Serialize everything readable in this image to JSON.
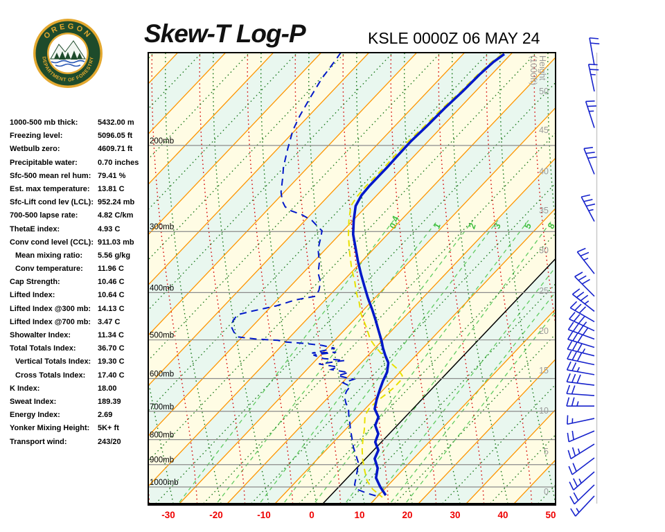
{
  "header": {
    "title": "Skew-T Log-P",
    "station": "KSLE 0000Z 06 MAY 24"
  },
  "logo": {
    "arc_top": "OREGON",
    "arc_bottom": "DEPARTMENT OF FORESTRY"
  },
  "indices": {
    "rows": [
      {
        "label": "1000-500 mb thick:",
        "value": "5432.00 m"
      },
      {
        "label": "Freezing level:",
        "value": "5096.05 ft"
      },
      {
        "label": "Wetbulb zero:",
        "value": "4609.71 ft"
      },
      {
        "label": "Precipitable water:",
        "value": "0.70 inches"
      },
      {
        "label": "Sfc-500 mean rel hum:",
        "value": "79.41 %"
      },
      {
        "label": "Est. max temperature:",
        "value": "13.81 C"
      },
      {
        "label": "Sfc-Lift cond lev (LCL):",
        "value": "952.24 mb"
      },
      {
        "label": "700-500 lapse rate:",
        "value": "4.82 C/km"
      },
      {
        "label": "ThetaE index:",
        "value": "4.93 C"
      },
      {
        "label": "Conv cond level (CCL):",
        "value": "911.03 mb"
      },
      {
        "label": "Mean mixing ratio:",
        "value": "5.56 g/kg",
        "indent": true
      },
      {
        "label": "Conv temperature:",
        "value": "11.96 C",
        "indent": true
      },
      {
        "label": "Cap Strength:",
        "value": "10.46 C"
      },
      {
        "label": "Lifted Index:",
        "value": "10.64 C"
      },
      {
        "label": "Lifted Index @300 mb:",
        "value": "14.13 C"
      },
      {
        "label": "Lifted Index @700 mb:",
        "value": "3.47 C"
      },
      {
        "label": "Showalter Index:",
        "value": "11.34 C"
      },
      {
        "label": "Total Totals Index:",
        "value": "36.70 C"
      },
      {
        "label": "Vertical Totals Index:",
        "value": "19.30 C",
        "indent": true
      },
      {
        "label": "Cross Totals Index:",
        "value": "17.40 C",
        "indent": true
      },
      {
        "label": "K Index:",
        "value": "18.00"
      },
      {
        "label": "Sweat Index:",
        "value": "189.39"
      },
      {
        "label": "Energy Index:",
        "value": "2.69"
      },
      {
        "label": "Yonker Mixing Height:",
        "value": "5K+ ft"
      },
      {
        "label": "Transport wind:",
        "value": "243/20"
      }
    ]
  },
  "chart_data": {
    "type": "skewt",
    "title": "Skew-T Log-P",
    "xlabel": "Temperature (C)",
    "temp_ticks_c": [
      -30,
      -20,
      -10,
      0,
      10,
      20,
      30,
      40,
      50
    ],
    "pressure_levels_mb": [
      200,
      300,
      400,
      500,
      600,
      700,
      800,
      900,
      1000
    ],
    "height_axis": {
      "title_line1": "Height",
      "title_line2": "(1000ft)",
      "labels": [
        {
          "kft": "0",
          "p": 1023
        },
        {
          "kft": "5",
          "p": 847
        },
        {
          "kft": "10",
          "p": 698
        },
        {
          "kft": "15",
          "p": 578
        },
        {
          "kft": "20",
          "p": 480
        },
        {
          "kft": "25",
          "p": 397
        },
        {
          "kft": "30",
          "p": 328
        },
        {
          "kft": "35",
          "p": 272
        },
        {
          "kft": "40",
          "p": 226
        },
        {
          "kft": "45",
          "p": 186
        },
        {
          "kft": "50",
          "p": 155
        }
      ]
    },
    "mixing_ratio_lines": [
      {
        "v": "0.4",
        "tb": -30.3,
        "tt": -41.5,
        "lab": true
      },
      {
        "v": "1",
        "tb": -22.3,
        "tt": -32.3,
        "lab": true
      },
      {
        "v": "2",
        "tb": -13.3,
        "tt": -24.9,
        "lab": true
      },
      {
        "v": "3",
        "tb": -8.3,
        "tt": -19.7,
        "lab": true
      },
      {
        "v": "5",
        "tb": -1.9,
        "tt": -13.3,
        "lab": true
      },
      {
        "v": "8",
        "tb": 4.6,
        "tt": -8.4,
        "lab": true
      },
      {
        "v": "12",
        "tb": 10.1,
        "tt": 0.0,
        "lab": false
      },
      {
        "v": "16",
        "tb": 14.0,
        "tt": 4.1,
        "lab": false
      },
      {
        "v": "20",
        "tb": 17.2,
        "tt": 7.3,
        "lab": false
      }
    ],
    "series": {
      "temperature_p_t": [
        [
          1040,
          11.5
        ],
        [
          1000,
          8.7
        ],
        [
          958,
          6.0
        ],
        [
          915,
          4.4
        ],
        [
          875,
          1.9
        ],
        [
          841,
          1.0
        ],
        [
          809,
          -1.3
        ],
        [
          778,
          -2.3
        ],
        [
          748,
          -4.6
        ],
        [
          719,
          -5.6
        ],
        [
          692,
          -8.0
        ],
        [
          663,
          -9.4
        ],
        [
          633,
          -10.7
        ],
        [
          607,
          -11.8
        ],
        [
          582,
          -12.7
        ],
        [
          557,
          -14.3
        ],
        [
          538,
          -16.4
        ],
        [
          519,
          -18.4
        ],
        [
          502,
          -20.1
        ],
        [
          478,
          -22.8
        ],
        [
          455,
          -25.5
        ],
        [
          433,
          -28.3
        ],
        [
          410,
          -31.5
        ],
        [
          387,
          -34.7
        ],
        [
          367,
          -37.6
        ],
        [
          346,
          -40.7
        ],
        [
          324,
          -44.0
        ],
        [
          304,
          -47.2
        ],
        [
          285,
          -49.8
        ],
        [
          266,
          -52.3
        ],
        [
          253,
          -53.2
        ],
        [
          242,
          -53.4
        ],
        [
          230,
          -53.4
        ],
        [
          221,
          -53.4
        ],
        [
          211,
          -53.5
        ],
        [
          196,
          -53.6
        ],
        [
          183,
          -53.3
        ],
        [
          168,
          -53.1
        ],
        [
          155,
          -52.7
        ],
        [
          143,
          -52.5
        ],
        [
          135,
          -52.1
        ],
        [
          130,
          -51.4
        ]
      ],
      "dewpoint_p_t": [
        [
          129,
          -85.9
        ],
        [
          134,
          -85.5
        ],
        [
          146,
          -84.7
        ],
        [
          160,
          -83.3
        ],
        [
          174,
          -81.9
        ],
        [
          186,
          -80.5
        ],
        [
          203,
          -77.9
        ],
        [
          221,
          -75.2
        ],
        [
          234,
          -73.0
        ],
        [
          249,
          -70.7
        ],
        [
          260,
          -68.6
        ],
        [
          267,
          -66.9
        ],
        [
          272,
          -64.9
        ],
        [
          277,
          -61.9
        ],
        [
          285,
          -58.5
        ],
        [
          296,
          -55.3
        ],
        [
          299,
          -54.4
        ],
        [
          310,
          -53.2
        ],
        [
          326,
          -51.6
        ],
        [
          346,
          -48.8
        ],
        [
          365,
          -46.8
        ],
        [
          381,
          -44.5
        ],
        [
          396,
          -43.2
        ],
        [
          407,
          -42.8
        ],
        [
          414,
          -46.2
        ],
        [
          426,
          -49.1
        ],
        [
          437,
          -53.2
        ],
        [
          444,
          -55.4
        ],
        [
          456,
          -55.2
        ],
        [
          470,
          -54.3
        ],
        [
          482,
          -52.7
        ],
        [
          493,
          -50.9
        ],
        [
          498,
          -46.6
        ],
        [
          501,
          -41.9
        ],
        [
          505,
          -39.8
        ],
        [
          508,
          -36.0
        ],
        [
          513,
          -31.6
        ],
        [
          520,
          -28.4
        ],
        [
          532,
          -32.2
        ],
        [
          530,
          -27.3
        ],
        [
          537,
          -31.5
        ],
        [
          546,
          -28.7
        ],
        [
          551,
          -23.9
        ],
        [
          560,
          -28.6
        ],
        [
          568,
          -24.1
        ],
        [
          575,
          -24.9
        ],
        [
          583,
          -20.7
        ],
        [
          592,
          -22.3
        ],
        [
          602,
          -18.3
        ],
        [
          612,
          -19.8
        ],
        [
          622,
          -17.6
        ],
        [
          637,
          -17.4
        ],
        [
          654,
          -16.7
        ],
        [
          673,
          -15.2
        ],
        [
          693,
          -13.4
        ],
        [
          714,
          -12.1
        ],
        [
          738,
          -10.5
        ],
        [
          762,
          -9.0
        ],
        [
          795,
          -6.9
        ],
        [
          828,
          -4.9
        ],
        [
          855,
          -3.1
        ],
        [
          889,
          -0.9
        ],
        [
          922,
          0.5
        ],
        [
          958,
          1.8
        ],
        [
          990,
          2.9
        ],
        [
          1013,
          4.6
        ],
        [
          1030,
          7.2
        ],
        [
          1043,
          9.6
        ]
      ],
      "wet_bulb_p_t": [
        [
          130,
          -51.8
        ],
        [
          135,
          -52.5
        ],
        [
          144,
          -52.9
        ],
        [
          156,
          -53.1
        ],
        [
          169,
          -53.6
        ],
        [
          184,
          -53.8
        ],
        [
          197,
          -54.2
        ],
        [
          211,
          -54.1
        ],
        [
          221,
          -54.0
        ],
        [
          231,
          -54.0
        ],
        [
          242,
          -54.1
        ],
        [
          254,
          -53.9
        ],
        [
          266,
          -53.3
        ],
        [
          285,
          -50.8
        ],
        [
          306,
          -47.9
        ],
        [
          332,
          -44.2
        ],
        [
          358,
          -40.6
        ],
        [
          378,
          -37.7
        ],
        [
          401,
          -34.8
        ],
        [
          419,
          -32.4
        ],
        [
          445,
          -29.4
        ],
        [
          470,
          -26.1
        ],
        [
          499,
          -22.7
        ],
        [
          515,
          -20.4
        ],
        [
          536,
          -17.2
        ],
        [
          559,
          -13.5
        ],
        [
          575,
          -10.9
        ],
        [
          592,
          -8.8
        ],
        [
          607,
          -8.2
        ],
        [
          627,
          -8.2
        ],
        [
          648,
          -8.6
        ],
        [
          669,
          -9.1
        ],
        [
          692,
          -9.2
        ],
        [
          714,
          -8.7
        ],
        [
          762,
          -6.1
        ],
        [
          801,
          -4.3
        ],
        [
          841,
          -2.4
        ],
        [
          883,
          -0.2
        ],
        [
          928,
          2.3
        ],
        [
          971,
          4.7
        ],
        [
          1010,
          7.5
        ],
        [
          1050,
          11.2
        ]
      ]
    },
    "wind_barbs": [
      {
        "p": 137,
        "dir": 100,
        "ticks": [
          10,
          10
        ]
      },
      {
        "p": 155,
        "dir": 102,
        "ticks": [
          10,
          10,
          5
        ]
      },
      {
        "p": 184,
        "dir": 108,
        "ticks": [
          10,
          10,
          5
        ]
      },
      {
        "p": 229,
        "dir": 112,
        "ticks": [
          10,
          10,
          10
        ]
      },
      {
        "p": 286,
        "dir": 118,
        "ticks": [
          10,
          10,
          10,
          5
        ]
      },
      {
        "p": 366,
        "dir": 128,
        "ticks": [
          10,
          10,
          5
        ]
      },
      {
        "p": 407,
        "dir": 135,
        "ticks": [
          10,
          10,
          10
        ]
      },
      {
        "p": 437,
        "dir": 142,
        "ticks": [
          10,
          10,
          10,
          5
        ]
      },
      {
        "p": 459,
        "dir": 150,
        "ticks": [
          10,
          10,
          10
        ]
      },
      {
        "p": 479,
        "dir": 155,
        "ticks": [
          10,
          10,
          10,
          5
        ]
      },
      {
        "p": 498,
        "dir": 160,
        "ticks": [
          10,
          10,
          10,
          10
        ]
      },
      {
        "p": 518,
        "dir": 163,
        "ticks": [
          10,
          10,
          10
        ]
      },
      {
        "p": 539,
        "dir": 166,
        "ticks": [
          10,
          10,
          10,
          5
        ]
      },
      {
        "p": 562,
        "dir": 168,
        "ticks": [
          10,
          10,
          10
        ]
      },
      {
        "p": 589,
        "dir": 170,
        "ticks": [
          10,
          10,
          5
        ]
      },
      {
        "p": 619,
        "dir": 173,
        "ticks": [
          10,
          10,
          10
        ]
      },
      {
        "p": 650,
        "dir": 176,
        "ticks": [
          10,
          10
        ]
      },
      {
        "p": 683,
        "dir": 180,
        "ticks": [
          10,
          10,
          5
        ]
      },
      {
        "p": 724,
        "dir": 192,
        "ticks": [
          10,
          5
        ]
      },
      {
        "p": 768,
        "dir": 203,
        "ticks": [
          10,
          10
        ]
      },
      {
        "p": 817,
        "dir": 212,
        "ticks": [
          10,
          10,
          5
        ]
      },
      {
        "p": 872,
        "dir": 217,
        "ticks": [
          10,
          10
        ]
      },
      {
        "p": 931,
        "dir": 221,
        "ticks": [
          10,
          10,
          5
        ]
      },
      {
        "p": 990,
        "dir": 224,
        "ticks": [
          10,
          10
        ]
      },
      {
        "p": 1043,
        "dir": 227,
        "ticks": [
          10,
          5
        ]
      }
    ],
    "colors": {
      "band_cream": "#FFFCE4",
      "band_mint": "#E9F7EF",
      "isotherm": "#FF9500",
      "zero_isotherm": "#000000",
      "moist_adiabat": "#D40000",
      "dry_adiabat": "#157515",
      "mid_isotherm": "#157515",
      "mixing_ratio": "#5FCB5F",
      "pressure_line": "#8A8A8A",
      "sounding": "#0018C8",
      "wet_bulb": "#E8E000",
      "height_text": "#9A9A9A",
      "temp_text": "#EE0000",
      "barb": "#1622CC"
    }
  }
}
